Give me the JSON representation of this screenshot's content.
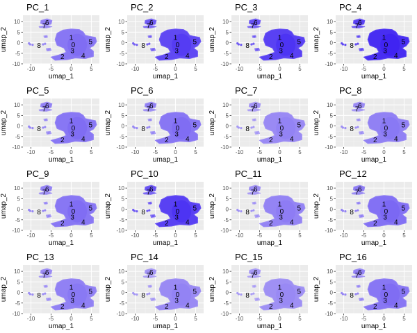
{
  "chart_data": {
    "type": "scatter",
    "title": "",
    "xlabel": "umap_1",
    "ylabel": "umap_2",
    "xlim": [
      -12,
      7
    ],
    "ylim": [
      -10,
      13
    ],
    "x_ticks": [
      -10,
      -5,
      0,
      5
    ],
    "y_ticks": [
      -10,
      -5,
      0,
      5,
      10
    ],
    "x_tick_labels": [
      "-10",
      "-5",
      "0",
      "5"
    ],
    "y_tick_labels": [
      "-10",
      "-5",
      "0",
      "5",
      "10"
    ],
    "grid": true,
    "background_color": "#ebebeb",
    "color_low": "#e8e3f6",
    "color_high": "#3a1ef2",
    "cluster_labels": [
      {
        "label": "0",
        "x": 0.5,
        "y": -1.0
      },
      {
        "label": "1",
        "x": 0.0,
        "y": 2.5
      },
      {
        "label": "2",
        "x": -2.2,
        "y": -6.5
      },
      {
        "label": "3",
        "x": 0.3,
        "y": -3.8
      },
      {
        "label": "4",
        "x": 3.0,
        "y": -6.0
      },
      {
        "label": "5",
        "x": 4.8,
        "y": 0.5
      },
      {
        "label": "6",
        "x": -6.0,
        "y": 9.5
      },
      {
        "label": "7",
        "x": -6.7,
        "y": 8.0
      },
      {
        "label": "8",
        "x": -8.0,
        "y": -1.3
      }
    ],
    "panels": [
      {
        "title": "PC_1",
        "intensity": 0.55
      },
      {
        "title": "PC_2",
        "intensity": 0.78
      },
      {
        "title": "PC_3",
        "intensity": 0.82
      },
      {
        "title": "PC_4",
        "intensity": 0.92
      },
      {
        "title": "PC_5",
        "intensity": 0.55
      },
      {
        "title": "PC_6",
        "intensity": 0.55
      },
      {
        "title": "PC_7",
        "intensity": 0.45
      },
      {
        "title": "PC_8",
        "intensity": 0.5
      },
      {
        "title": "PC_9",
        "intensity": 0.55
      },
      {
        "title": "PC_10",
        "intensity": 0.82
      },
      {
        "title": "PC_11",
        "intensity": 0.48
      },
      {
        "title": "PC_12",
        "intensity": 0.58
      },
      {
        "title": "PC_13",
        "intensity": 0.5
      },
      {
        "title": "PC_14",
        "intensity": 0.45
      },
      {
        "title": "PC_15",
        "intensity": 0.42
      },
      {
        "title": "PC_16",
        "intensity": 0.55
      }
    ]
  }
}
